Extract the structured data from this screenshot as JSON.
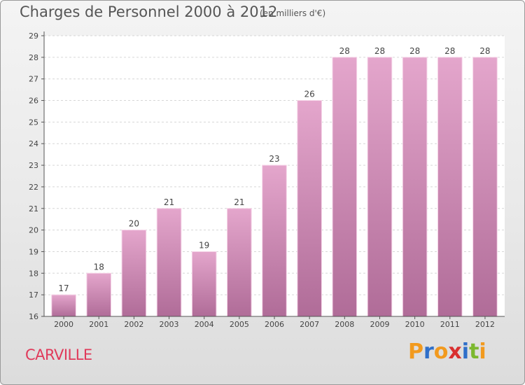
{
  "header": {
    "title": "Charges de Personnel 2000 à 2012",
    "subtitle": "(en milliers d'€)"
  },
  "footer": {
    "town": "CARVILLE",
    "brand": "Proxiti"
  },
  "colors": {
    "bar_top": "#e4a6cc",
    "bar_bottom": "#b06c98",
    "bar_edge": "#f6d4e8",
    "town": "#e03a5a",
    "brand_letters": [
      "#f29a1e",
      "#2f6fc9",
      "#f29a1e",
      "#d93030",
      "#2f6fc9",
      "#7cb82f",
      "#f29a1e"
    ]
  },
  "chart_data": {
    "type": "bar",
    "title": "Charges de Personnel 2000 à 2012",
    "subtitle": "(en milliers d'€)",
    "xlabel": "",
    "ylabel": "",
    "categories": [
      "2000",
      "2001",
      "2002",
      "2003",
      "2004",
      "2005",
      "2006",
      "2007",
      "2008",
      "2009",
      "2010",
      "2011",
      "2012"
    ],
    "values": [
      17,
      18,
      20,
      21,
      19,
      21,
      23,
      26,
      28,
      28,
      28,
      28,
      28
    ],
    "ylim": [
      16,
      29
    ],
    "yticks": [
      16,
      17,
      18,
      19,
      20,
      21,
      22,
      23,
      24,
      25,
      26,
      27,
      28,
      29
    ],
    "grid": true,
    "data_labels": true
  }
}
